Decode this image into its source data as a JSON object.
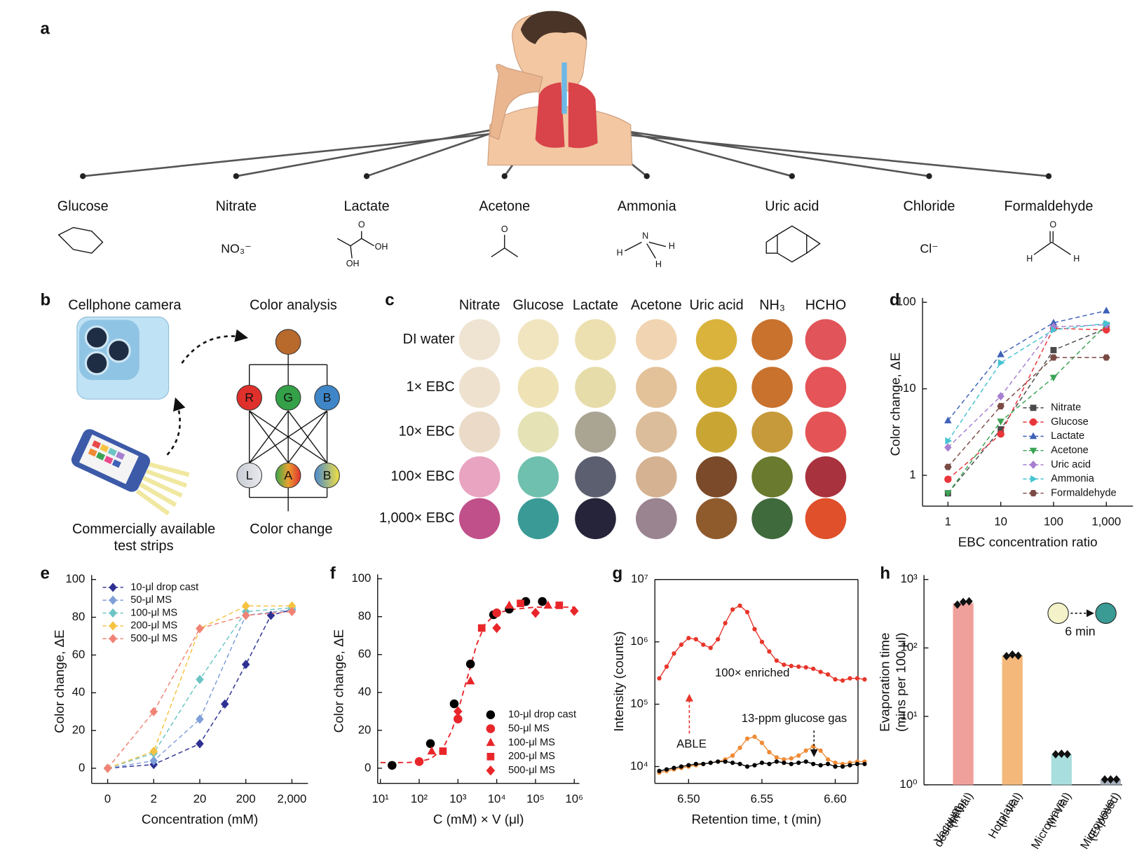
{
  "panel_labels": [
    "a",
    "b",
    "c",
    "d",
    "e",
    "f",
    "g",
    "h"
  ],
  "panel_a": {
    "analytes": [
      {
        "name": "Glucose"
      },
      {
        "name": "Nitrate",
        "formula": "NO₃⁻"
      },
      {
        "name": "Lactate",
        "atoms": [
          "O",
          "OH",
          "OH"
        ]
      },
      {
        "name": "Acetone",
        "atoms": [
          "O"
        ]
      },
      {
        "name": "Ammonia",
        "atoms": [
          "N",
          "H",
          "H",
          "H"
        ]
      },
      {
        "name": "Uric acid"
      },
      {
        "name": "Chloride",
        "formula": "Cl⁻"
      },
      {
        "name": "Formaldehyde",
        "atoms": [
          "O",
          "H",
          "H"
        ]
      }
    ]
  },
  "panel_b": {
    "camera": "Cellphone camera",
    "analysis": "Color analysis",
    "strips": [
      "Commercially available",
      "test strips"
    ],
    "change": "Color change",
    "nodes": [
      "R",
      "G",
      "B",
      "L",
      "A",
      "B"
    ]
  },
  "panel_c": {
    "columns": [
      "Nitrate",
      "Glucose",
      "Lactate",
      "Acetone",
      "Uric acid",
      "NH₃",
      "HCHO"
    ],
    "rows": [
      "DI water",
      "1× EBC",
      "10× EBC",
      "100× EBC",
      "1,000× EBC"
    ],
    "colors": [
      [
        "#efe4d2",
        "#f0e5bf",
        "#ede0b0",
        "#f1d4b2",
        "#d9b33c",
        "#c8722e",
        "#e0545a"
      ],
      [
        "#eee2cf",
        "#efe3b6",
        "#e6dcaa",
        "#e3c29a",
        "#d2ae38",
        "#c8722e",
        "#e45458"
      ],
      [
        "#ebdac8",
        "#e5e2b6",
        "#aaa493",
        "#dcbd9b",
        "#c9a634",
        "#c69a3a",
        "#e45456"
      ],
      [
        "#e8a4c0",
        "#6fc0ae",
        "#5c5f70",
        "#d4b292",
        "#7a4a2a",
        "#6a7a2e",
        "#a8323e"
      ],
      [
        "#c0508a",
        "#3a9a96",
        "#25243a",
        "#9a8490",
        "#8f5a2c",
        "#3f6a3c",
        "#e0502a"
      ]
    ]
  },
  "chart_data": [
    {
      "type": "line",
      "xlog": true,
      "ylog": true,
      "x": [
        1,
        10,
        100,
        1000
      ],
      "xlim": [
        0.33,
        3200
      ],
      "ylim": [
        0.44,
        100
      ],
      "xticks": [
        1,
        10,
        100,
        {
          "value": 1000,
          "label": "1,000"
        }
      ],
      "yticks": [
        1,
        10,
        100
      ],
      "xlabel": "EBC concentration ratio",
      "ylabel": "Color change, ΔE",
      "legend": "lower right",
      "line_style": "dashed",
      "series": [
        {
          "name": "Nitrate",
          "color": "#4a4a4a",
          "marker": "square",
          "values": [
            0.62,
            3.4,
            28,
            50
          ]
        },
        {
          "name": "Glucose",
          "color": "#e8363a",
          "marker": "circle",
          "values": [
            0.9,
            3.0,
            50,
            48
          ]
        },
        {
          "name": "Lactate",
          "color": "#3f62b8",
          "marker": "triangle-up",
          "values": [
            4.3,
            25,
            58,
            80
          ]
        },
        {
          "name": "Acetone",
          "color": "#3aa454",
          "marker": "triangle-down",
          "values": [
            0.62,
            4.2,
            13.5,
            55
          ]
        },
        {
          "name": "Uric acid",
          "color": "#a67fd0",
          "marker": "diamond",
          "values": [
            2.1,
            8.2,
            52,
            55
          ]
        },
        {
          "name": "Ammonia",
          "color": "#45c3d3",
          "marker": "triangle-right",
          "values": [
            2.5,
            20,
            48,
            57
          ]
        },
        {
          "name": "Formaldehyde",
          "color": "#7a4a44",
          "marker": "hexagon",
          "values": [
            1.25,
            6.3,
            23,
            23
          ]
        }
      ]
    },
    {
      "type": "line",
      "xlog": true,
      "xlim": [
        0.09,
        4470
      ],
      "ylim": [
        -8,
        100
      ],
      "xticks": [
        0,
        2,
        20,
        200,
        {
          "value": 2000,
          "label": "2,000"
        }
      ],
      "yticks": [
        0,
        20,
        40,
        60,
        80,
        100
      ],
      "xlabel": "Concentration (mM)",
      "ylabel": "Color change, ΔE",
      "legend": "upper left",
      "line_style": "dashed",
      "series": [
        {
          "name": "10-μl drop cast",
          "color": "#2e3192",
          "marker": "diamond",
          "x": [
            0,
            2,
            20,
            70,
            200,
            700,
            2000
          ],
          "values": [
            0,
            2,
            13,
            34,
            55,
            81,
            84
          ]
        },
        {
          "name": "50-μl MS",
          "color": "#7f9fd8",
          "marker": "diamond",
          "x": [
            0,
            2,
            20,
            200,
            2000
          ],
          "values": [
            0,
            4,
            26,
            81,
            84
          ]
        },
        {
          "name": "100-μl MS",
          "color": "#6cc5c4",
          "marker": "diamond",
          "x": [
            0,
            2,
            20,
            200,
            2000
          ],
          "values": [
            0,
            8,
            47,
            83,
            85
          ]
        },
        {
          "name": "200-μl MS",
          "color": "#f5c242",
          "marker": "diamond",
          "x": [
            0,
            2,
            20,
            200,
            2000
          ],
          "values": [
            0,
            9,
            74,
            86,
            86
          ]
        },
        {
          "name": "500-μl MS",
          "color": "#f08375",
          "marker": "diamond",
          "x": [
            0,
            2,
            20,
            200,
            2000
          ],
          "values": [
            0,
            30,
            74,
            81,
            83
          ]
        }
      ]
    },
    {
      "type": "scatter",
      "xlog": true,
      "xlim": [
        8.5,
        1350000
      ],
      "ylim": [
        -8,
        100
      ],
      "xticks": [
        {
          "value": 10,
          "label": "10¹"
        },
        {
          "value": 100,
          "label": "10²"
        },
        {
          "value": 1000,
          "label": "10³"
        },
        {
          "value": 10000,
          "label": "10⁴"
        },
        {
          "value": 100000,
          "label": "10⁵"
        },
        {
          "value": 1000000,
          "label": "10⁶"
        }
      ],
      "yticks": [
        0,
        20,
        40,
        60,
        80,
        100
      ],
      "xlabel": "C (mM) × V (μl)",
      "ylabel": "Color change, ΔE",
      "legend": "lower right",
      "series": [
        {
          "name": "10-μl drop cast",
          "color": "#000000",
          "marker": "circle",
          "x": [
            20,
            195,
            800,
            2100,
            8300,
            21000,
            56000,
            150000
          ],
          "values": [
            1.5,
            13,
            34,
            55,
            81,
            84,
            88,
            88
          ]
        },
        {
          "name": "50-μl MS",
          "color": "#e8262a",
          "marker": "circle",
          "x": [
            100,
            1000,
            10000
          ],
          "values": [
            3.5,
            26,
            82
          ]
        },
        {
          "name": "100-μl MS",
          "color": "#e8262a",
          "marker": "triangle-up",
          "x": [
            210,
            2100,
            21000,
            210000
          ],
          "values": [
            9,
            46,
            86,
            86
          ]
        },
        {
          "name": "200-μl MS",
          "color": "#e8262a",
          "marker": "square",
          "x": [
            410,
            4100,
            41000,
            410000
          ],
          "values": [
            9,
            74,
            87,
            86
          ]
        },
        {
          "name": "500-μl MS",
          "color": "#e8262a",
          "marker": "diamond",
          "x": [
            1000,
            10000,
            100000,
            1000000
          ],
          "values": [
            30,
            74,
            82,
            83
          ]
        }
      ],
      "fit": {
        "color": "#e8262a",
        "x": [
          10,
          50,
          100,
          200,
          400,
          700,
          1000,
          1500,
          2000,
          3000,
          5000,
          10000,
          30000,
          100000,
          1000000
        ],
        "values": [
          3,
          3,
          3.5,
          5,
          10,
          20,
          30,
          43,
          52,
          65,
          76,
          82,
          84,
          85,
          85
        ]
      }
    },
    {
      "type": "line",
      "ylog": true,
      "box": true,
      "xlim": [
        6.477,
        6.6155
      ],
      "ylim": [
        5370,
        10000000
      ],
      "xticks": [
        {
          "value": 6.5,
          "label": "6.50"
        },
        {
          "value": 6.55,
          "label": "6.55"
        },
        {
          "value": 6.6,
          "label": "6.60"
        }
      ],
      "yticks": [
        {
          "value": 10000,
          "label": "10⁴"
        },
        {
          "value": 100000,
          "label": "10⁵"
        },
        {
          "value": 1000000,
          "label": "10⁶"
        },
        {
          "value": 10000000,
          "label": "10⁷"
        }
      ],
      "xlabel": "Retention time, t (min)",
      "ylabel": "Intensity (counts)",
      "line_style": "solid",
      "x": [
        6.48,
        6.485,
        6.49,
        6.495,
        6.5,
        6.505,
        6.51,
        6.515,
        6.52,
        6.525,
        6.53,
        6.535,
        6.54,
        6.545,
        6.55,
        6.555,
        6.56,
        6.565,
        6.57,
        6.575,
        6.58,
        6.585,
        6.59,
        6.595,
        6.6,
        6.605,
        6.61,
        6.615,
        6.62
      ],
      "series": [
        {
          "color": "#e8352b",
          "marker": "circle",
          "values": [
            260000,
            400000,
            650000,
            900000,
            1150000,
            1100000,
            900000,
            800000,
            1100000,
            2000000,
            3300000,
            3800000,
            3000000,
            1600000,
            1000000,
            700000,
            500000,
            430000,
            410000,
            400000,
            390000,
            370000,
            330000,
            300000,
            250000,
            240000,
            260000,
            260000,
            250000
          ]
        },
        {
          "color": "#f08a34",
          "marker": "circle",
          "values": [
            8000,
            8500,
            9000,
            9500,
            10000,
            10500,
            11000,
            11500,
            12000,
            13000,
            15000,
            20000,
            28000,
            30000,
            24000,
            17000,
            14000,
            13000,
            13500,
            15000,
            18000,
            21000,
            18000,
            13000,
            11500,
            11000,
            11500,
            12000,
            12000
          ]
        },
        {
          "color": "#000000",
          "marker": "circle",
          "values": [
            8500,
            9000,
            9500,
            10000,
            10500,
            11000,
            11000,
            11500,
            12000,
            12000,
            11500,
            11000,
            10000,
            10500,
            11500,
            11000,
            12000,
            11500,
            11000,
            11500,
            12000,
            11000,
            10500,
            11000,
            10000,
            10000,
            10500,
            11000,
            11000
          ]
        }
      ],
      "annotations": [
        {
          "text": "100× enriched",
          "color": "#e8352b"
        },
        {
          "text": "ABLE",
          "color": "#f08a34"
        },
        {
          "text": "13-ppm glucose gas",
          "color": "#111111"
        }
      ]
    },
    {
      "type": "bar",
      "ylog": true,
      "ylim": [
        1,
        1000
      ],
      "yticks": [
        {
          "value": 1,
          "label": "10⁰"
        },
        {
          "value": 10,
          "label": "10¹"
        },
        {
          "value": 100,
          "label": "10²"
        },
        {
          "value": 1000,
          "label": "10³"
        }
      ],
      "ylabel": [
        "Evaporation time",
        "(mins per 100 μl)"
      ],
      "categories": [
        [
          "Vacuum",
          "desiccator",
          "(in vial)"
        ],
        [
          "Hotplate",
          "(in vial)"
        ],
        [
          "Microwave",
          "(in vial)"
        ],
        [
          "Microwave",
          "(Exposed)"
        ]
      ],
      "values": [
        450,
        78,
        2.8,
        1.2
      ],
      "colors": [
        "#f0a09a",
        "#f4b87a",
        "#a8dedd",
        "#a9b2bf"
      ],
      "points": [
        [
          430,
          470,
          480
        ],
        [
          76,
          80,
          77
        ],
        [
          2.8,
          2.85,
          2.8
        ],
        [
          1.2,
          1.2,
          1.2
        ]
      ],
      "annotations": [
        {
          "text": "6 min",
          "color": "#111111"
        }
      ]
    }
  ]
}
